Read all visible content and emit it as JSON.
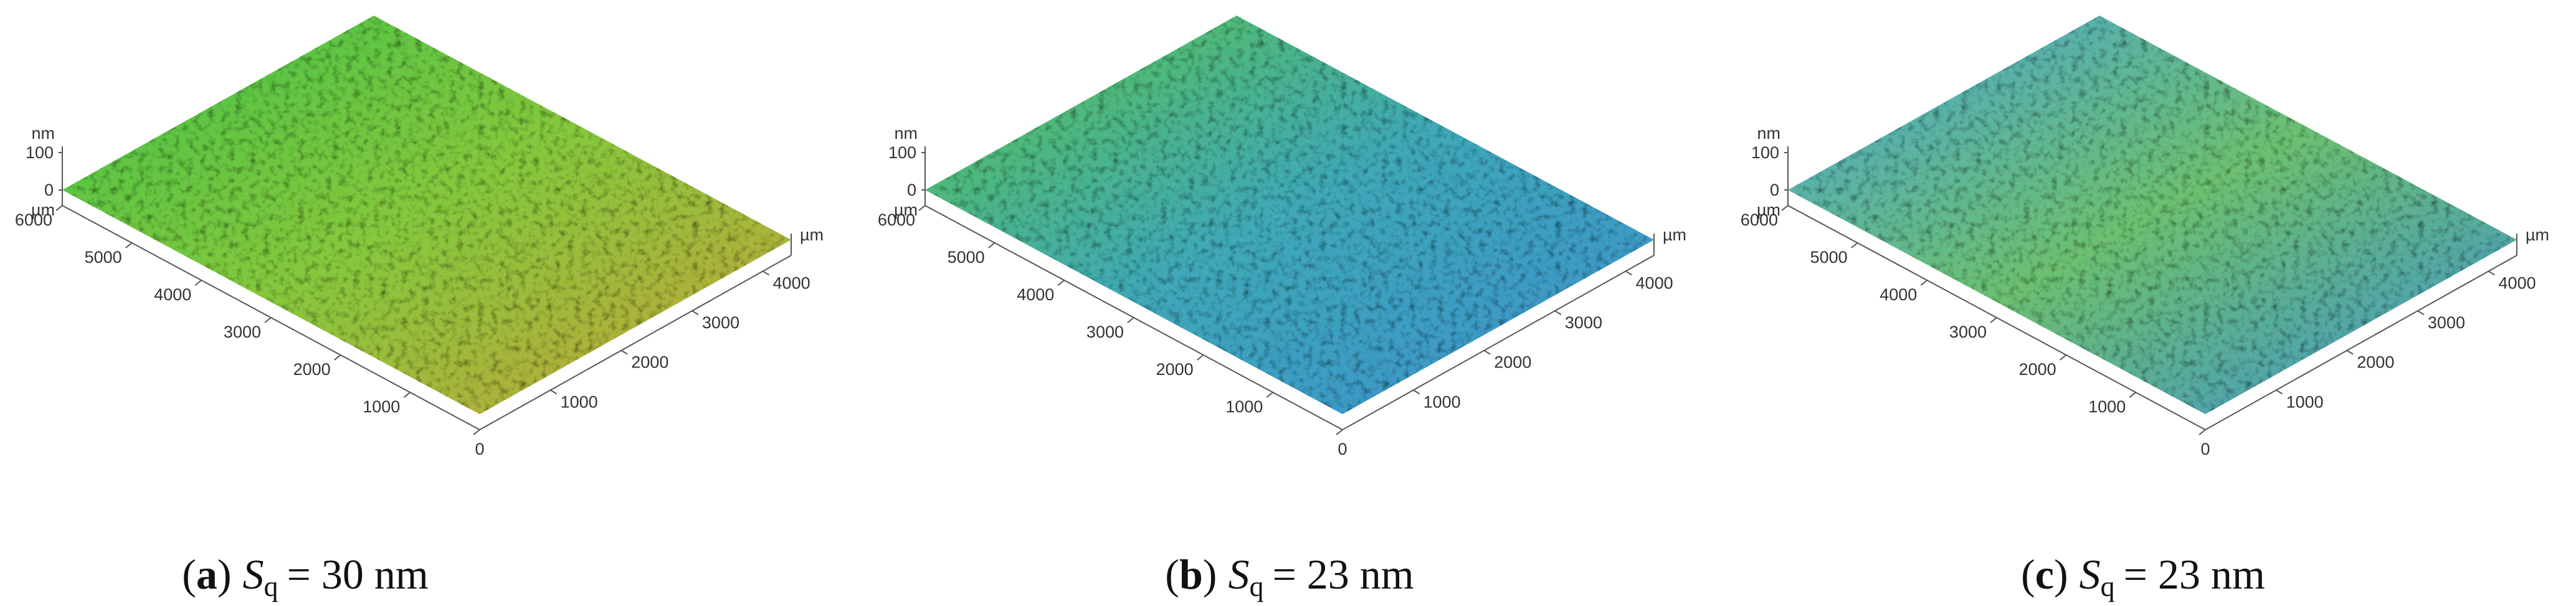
{
  "panels": [
    {
      "z_unit": "nm",
      "xy_unit": "µm",
      "zticks": [
        100,
        0
      ],
      "zlim": [
        0,
        100
      ],
      "yticks": [
        6000,
        5000,
        4000,
        3000,
        2000,
        1000,
        0
      ],
      "ylim": [
        0,
        6000
      ],
      "xticks": [
        1000,
        2000,
        3000,
        4000
      ],
      "xlim": [
        0,
        4400
      ],
      "colors": [
        "#3fc34a",
        "#86c83c",
        "#c9a23a"
      ],
      "caption": {
        "open": "(",
        "label": "a",
        "close": ")",
        "symbol": "S",
        "subscript": "q",
        "text": "= 30 nm"
      }
    },
    {
      "z_unit": "nm",
      "xy_unit": "µm",
      "zticks": [
        100,
        0
      ],
      "zlim": [
        0,
        100
      ],
      "yticks": [
        6000,
        5000,
        4000,
        3000,
        2000,
        1000,
        0
      ],
      "ylim": [
        0,
        6000
      ],
      "xticks": [
        1000,
        2000,
        3000,
        4000
      ],
      "xlim": [
        0,
        4400
      ],
      "colors": [
        "#5cc64a",
        "#3fa8b8",
        "#3b8fd0"
      ],
      "caption": {
        "open": "(",
        "label": "b",
        "close": ")",
        "symbol": "S",
        "subscript": "q",
        "text": "= 23 nm"
      }
    },
    {
      "z_unit": "nm",
      "xy_unit": "µm",
      "zticks": [
        100,
        0
      ],
      "zlim": [
        0,
        100
      ],
      "yticks": [
        6000,
        5000,
        4000,
        3000,
        2000,
        1000,
        0
      ],
      "ylim": [
        0,
        6000
      ],
      "xticks": [
        1000,
        2000,
        3000,
        4000
      ],
      "xlim": [
        0,
        4400
      ],
      "colors": [
        "#4aa6d6",
        "#6cc070",
        "#3f92d2"
      ],
      "caption": {
        "open": "(",
        "label": "c",
        "close": ")",
        "symbol": "S",
        "subscript": "q",
        "text": "= 23 nm"
      }
    }
  ]
}
